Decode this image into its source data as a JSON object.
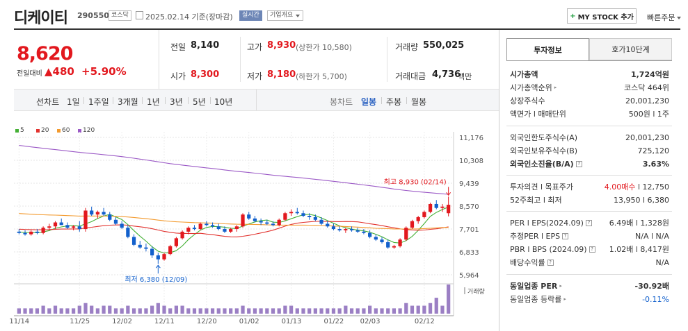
{
  "header": {
    "name": "디케이티",
    "code": "290550",
    "market": "코스닥",
    "date": "2025.02.14 기준(장마감)",
    "live_label": "실시간",
    "info_label": "기업개요",
    "mystock_label": "MY STOCK 추가",
    "quick_label": "빠른주문"
  },
  "price": {
    "current": "8,620",
    "change_label": "전일대비",
    "change_value": "▲480",
    "change_pct": "+5.90%"
  },
  "stats": {
    "prev_label": "전일",
    "prev": "8,140",
    "open_label": "시가",
    "open": "8,300",
    "high_label": "고가",
    "high": "8,930",
    "upper_limit": "(상한가 10,580)",
    "low_label": "저가",
    "low": "8,180",
    "lower_limit": "(하한가 5,700)",
    "volume_label": "거래량",
    "volume": "550,025",
    "amount_label": "거래대금",
    "amount": "4,736",
    "amount_unit": "백만"
  },
  "toolbar": {
    "line_chart_label": "선차트",
    "periods": [
      "1일",
      "1주일",
      "3개월",
      "1년",
      "3년",
      "5년",
      "10년"
    ],
    "candle_label": "봉차트",
    "candle_types": [
      "일봉",
      "주봉",
      "월봉"
    ],
    "selected_candle": "일봉"
  },
  "legend": [
    {
      "name": "5",
      "color": "#44b035"
    },
    {
      "name": "20",
      "color": "#e2332f"
    },
    {
      "name": "60",
      "color": "#f39a2e"
    },
    {
      "name": "120",
      "color": "#9b59c6"
    }
  ],
  "chart_data": {
    "type": "candlestick",
    "y_ticks": [
      "11,176",
      "10,308",
      "9,439",
      "8,570",
      "7,701",
      "6,833",
      "5,964"
    ],
    "y_tick_values": [
      11176,
      10308,
      9439,
      8570,
      7701,
      6833,
      5964
    ],
    "x_ticks": [
      "11/14",
      "11/25",
      "12/02",
      "12/11",
      "12/20",
      "01/02",
      "01/13",
      "01/22",
      "02/03",
      "02/12"
    ],
    "high_annotation": "최고 8,930 (02/14)",
    "low_annotation": "최저 6,380 (12/09)",
    "volume_label": "거래량",
    "candles": [
      [
        7600,
        7700,
        7500,
        7550
      ],
      [
        7550,
        7650,
        7450,
        7500
      ],
      [
        7500,
        7650,
        7450,
        7600
      ],
      [
        7600,
        7700,
        7500,
        7550
      ],
      [
        7550,
        7800,
        7500,
        7750
      ],
      [
        7750,
        7900,
        7650,
        7800
      ],
      [
        7800,
        8000,
        7700,
        7950
      ],
      [
        7950,
        8100,
        7850,
        7850
      ],
      [
        7850,
        7950,
        7700,
        7750
      ],
      [
        7750,
        7850,
        7650,
        7800
      ],
      [
        7800,
        8000,
        7600,
        7700
      ],
      [
        7700,
        8500,
        7600,
        8400
      ],
      [
        8400,
        8550,
        8200,
        8250
      ],
      [
        8250,
        8400,
        8100,
        8350
      ],
      [
        8350,
        8500,
        8200,
        8250
      ],
      [
        8250,
        8350,
        8000,
        8050
      ],
      [
        8050,
        8150,
        7850,
        7900
      ],
      [
        7900,
        8000,
        7700,
        7750
      ],
      [
        7750,
        7850,
        7350,
        7400
      ],
      [
        7400,
        7500,
        7050,
        7100
      ],
      [
        7100,
        7250,
        6950,
        7000
      ],
      [
        7000,
        7150,
        6850,
        6950
      ],
      [
        6950,
        7050,
        6600,
        6700
      ],
      [
        6700,
        6800,
        6380,
        6550
      ],
      [
        6550,
        6800,
        6500,
        6750
      ],
      [
        6750,
        7100,
        6700,
        7050
      ],
      [
        7050,
        7400,
        7000,
        7350
      ],
      [
        7350,
        7650,
        7300,
        7600
      ],
      [
        7600,
        7800,
        7500,
        7750
      ],
      [
        7750,
        7850,
        7650,
        7700
      ],
      [
        7700,
        7950,
        7650,
        7900
      ],
      [
        7900,
        8000,
        7800,
        7850
      ],
      [
        7850,
        7950,
        7750,
        7800
      ],
      [
        7800,
        7900,
        7650,
        7700
      ],
      [
        7700,
        7800,
        7550,
        7600
      ],
      [
        7600,
        7750,
        7550,
        7700
      ],
      [
        7700,
        7850,
        7600,
        7800
      ],
      [
        7800,
        8300,
        7750,
        8250
      ],
      [
        8250,
        8350,
        8050,
        8100
      ],
      [
        8100,
        8200,
        7950,
        8000
      ],
      [
        8000,
        8100,
        7850,
        7950
      ],
      [
        7950,
        8050,
        7850,
        7900
      ],
      [
        7900,
        8000,
        7800,
        7850
      ],
      [
        7850,
        8100,
        7800,
        8050
      ],
      [
        8050,
        8350,
        8000,
        8300
      ],
      [
        8300,
        8450,
        8200,
        8350
      ],
      [
        8350,
        8500,
        8250,
        8300
      ],
      [
        8300,
        8400,
        8150,
        8200
      ],
      [
        8200,
        8300,
        8050,
        8150
      ],
      [
        8150,
        8250,
        8000,
        8050
      ],
      [
        8050,
        8150,
        7850,
        7900
      ],
      [
        7900,
        8000,
        7750,
        7800
      ],
      [
        7800,
        7900,
        7650,
        7700
      ],
      [
        7700,
        7800,
        7600,
        7650
      ],
      [
        7650,
        7750,
        7550,
        7700
      ],
      [
        7700,
        7800,
        7600,
        7650
      ],
      [
        7650,
        7750,
        7550,
        7600
      ],
      [
        7600,
        7700,
        7500,
        7550
      ],
      [
        7550,
        7650,
        7350,
        7400
      ],
      [
        7400,
        7500,
        7250,
        7300
      ],
      [
        7300,
        7400,
        7150,
        7200
      ],
      [
        7200,
        7300,
        6950,
        7000
      ],
      [
        7000,
        7100,
        6950,
        7050
      ],
      [
        7050,
        7350,
        7000,
        7300
      ],
      [
        7300,
        7800,
        7250,
        7750
      ],
      [
        7750,
        8050,
        7700,
        8000
      ],
      [
        8000,
        8200,
        7900,
        8150
      ],
      [
        8150,
        8400,
        8100,
        8350
      ],
      [
        8350,
        8700,
        8300,
        8650
      ],
      [
        8650,
        8800,
        8450,
        8500
      ],
      [
        8500,
        8650,
        8350,
        8550
      ],
      [
        8300,
        8930,
        8180,
        8620
      ]
    ],
    "volumes": [
      2,
      2,
      2,
      2,
      3,
      2,
      3,
      2,
      2,
      2,
      3,
      4,
      3,
      2,
      3,
      3,
      2,
      2,
      3,
      2,
      2,
      2,
      3,
      4,
      3,
      2,
      3,
      3,
      2,
      2,
      2,
      2,
      2,
      2,
      2,
      2,
      2,
      3,
      2,
      2,
      2,
      2,
      2,
      2,
      3,
      3,
      2,
      2,
      2,
      2,
      2,
      2,
      2,
      2,
      3,
      2,
      2,
      2,
      3,
      2,
      2,
      2,
      2,
      2,
      4,
      3,
      3,
      3,
      4,
      6,
      3,
      11
    ]
  },
  "invest": {
    "tab1": "투자정보",
    "tab2": "호가10단계",
    "market_cap_label": "시가총액",
    "market_cap": "1,724억원",
    "rank_label": "시가총액순위",
    "rank": "코스닥 464위",
    "shares_label": "상장주식수",
    "shares": "20,001,230",
    "par_label": "액면가 l 매매단위",
    "par": "500원 l 1주",
    "foreign_limit_label": "외국인한도주식수(A)",
    "foreign_limit": "20,001,230",
    "foreign_hold_label": "외국인보유주식수(B)",
    "foreign_hold": "725,120",
    "foreign_ratio_label": "외국인소진율(B/A)",
    "foreign_ratio": "3.63%",
    "opinion_label": "투자의견 l 목표주가",
    "opinion": "4.00매수",
    "target": "l 12,750",
    "wk52_label": "52주최고 l 최저",
    "wk52": "13,950 l 6,380",
    "per_label": "PER l EPS(2024.09)",
    "per": "6.49배 l 1,328원",
    "est_per_label": "추정PER l EPS",
    "est_per": "N/A l N/A",
    "pbr_label": "PBR l BPS (2024.09)",
    "pbr": "1.02배 l 8,417원",
    "div_label": "배당수익률",
    "div": "N/A",
    "sector_per_label": "동일업종 PER",
    "sector_per": "-30.92배",
    "sector_chg_label": "동일업종 등락률",
    "sector_chg": "-0.11%"
  }
}
